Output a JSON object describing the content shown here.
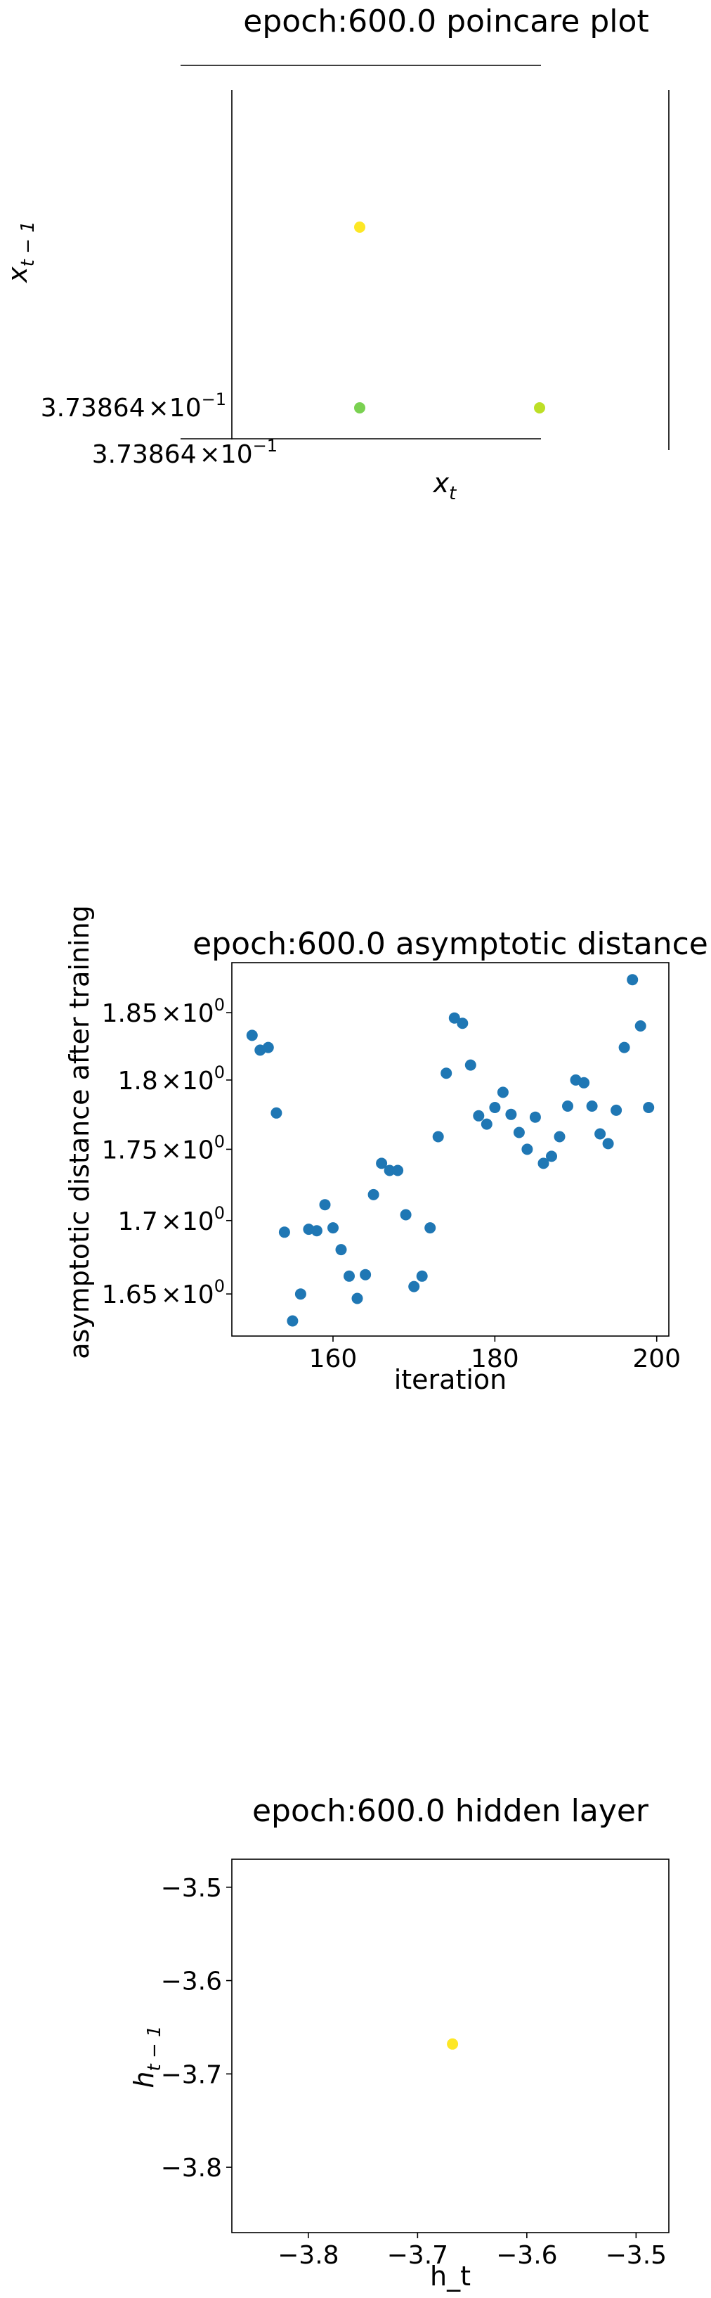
{
  "colors": {
    "scatter_blue": "#1f77b4",
    "yellow": "#fde725",
    "yellow_green": "#bddf26",
    "green": "#7ad151",
    "axis": "#000000"
  },
  "poincare": {
    "title": "epoch:600.0 poincare plot",
    "xlabel_main": "x",
    "xlabel_sub": "t",
    "ylabel_main": "x",
    "ylabel_sub": "t − 1",
    "x_tick_mantissa": "3.73864",
    "y_tick_mantissa": "3.73864",
    "tick_times": "×10",
    "tick_exp": "−1"
  },
  "asymptotic": {
    "title": "epoch:600.0 asymptotic distance",
    "xlabel": "iteration",
    "ylabel": "asymptotic distance after training",
    "x_ticks": [
      "160",
      "180",
      "200"
    ],
    "y_ticks": [
      {
        "mantissa": "1.65",
        "exp": "0"
      },
      {
        "mantissa": "1.7",
        "exp": "0"
      },
      {
        "mantissa": "1.75",
        "exp": "0"
      },
      {
        "mantissa": "1.8",
        "exp": "0"
      },
      {
        "mantissa": "1.85",
        "exp": "0"
      }
    ],
    "tick_times": "×10"
  },
  "hidden": {
    "title": "epoch:600.0 hidden layer",
    "xlabel": "h_t",
    "ylabel_main": "h",
    "ylabel_sub": "t − 1",
    "x_ticks": [
      "−3.8",
      "−3.7",
      "−3.6",
      "−3.5"
    ],
    "y_ticks": [
      "−3.5",
      "−3.6",
      "−3.7",
      "−3.8"
    ]
  },
  "chart_data": [
    {
      "type": "scatter",
      "title": "epoch:600.0 poincare plot",
      "xlabel": "x_t",
      "ylabel": "x_{t-1}",
      "x_scale": "log",
      "y_scale": "log",
      "points": [
        {
          "x": 0.373864,
          "y": 0.373864,
          "color": "yellow",
          "position": "upper"
        },
        {
          "x": 0.373864,
          "y": 0.373864,
          "color": "green",
          "position": "lower-left"
        },
        {
          "x": 0.373864,
          "y": 0.373864,
          "color": "yellow-green",
          "position": "lower-right"
        }
      ],
      "grid": false
    },
    {
      "type": "scatter",
      "title": "epoch:600.0 asymptotic distance",
      "xlabel": "iteration",
      "ylabel": "asymptotic distance after training",
      "y_scale": "log",
      "xlim": [
        147.5,
        201.5
      ],
      "ylim": [
        1.622,
        1.888
      ],
      "x": [
        150,
        151,
        152,
        153,
        154,
        155,
        156,
        157,
        158,
        159,
        160,
        161,
        162,
        163,
        164,
        165,
        166,
        167,
        168,
        169,
        170,
        171,
        172,
        173,
        174,
        175,
        176,
        177,
        178,
        179,
        180,
        181,
        182,
        183,
        184,
        185,
        186,
        187,
        188,
        189,
        190,
        191,
        192,
        193,
        194,
        195,
        196,
        197,
        198,
        199
      ],
      "y": [
        1.833,
        1.822,
        1.824,
        1.776,
        1.692,
        1.632,
        1.65,
        1.694,
        1.693,
        1.711,
        1.695,
        1.68,
        1.662,
        1.647,
        1.663,
        1.718,
        1.74,
        1.735,
        1.735,
        1.704,
        1.655,
        1.662,
        1.695,
        1.759,
        1.805,
        1.846,
        1.842,
        1.811,
        1.774,
        1.768,
        1.78,
        1.791,
        1.775,
        1.762,
        1.75,
        1.773,
        1.74,
        1.745,
        1.759,
        1.781,
        1.8,
        1.798,
        1.781,
        1.761,
        1.754,
        1.778,
        1.824,
        1.875,
        1.84,
        1.78
      ],
      "grid": false
    },
    {
      "type": "scatter",
      "title": "epoch:600.0 hidden layer",
      "xlabel": "h_t",
      "ylabel": "h_{t-1}",
      "xlim": [
        -3.87,
        -3.47
      ],
      "ylim": [
        -3.87,
        -3.47
      ],
      "points": [
        {
          "x": -3.668,
          "y": -3.668,
          "color": "yellow"
        }
      ],
      "grid": false
    }
  ]
}
